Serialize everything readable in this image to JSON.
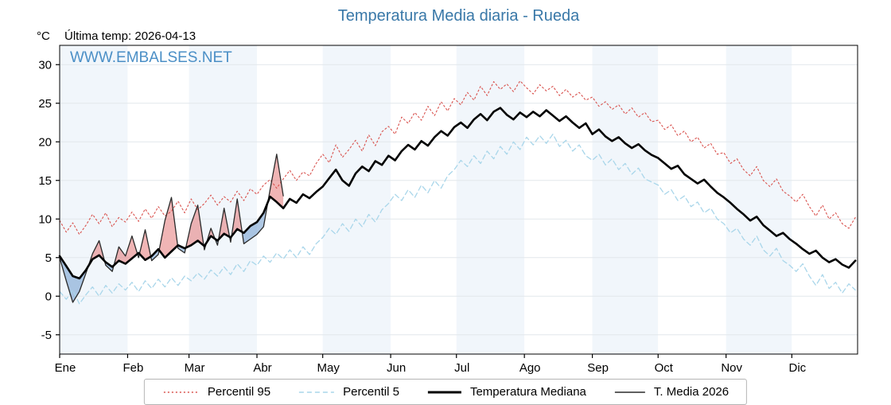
{
  "title": "Temperatura Media diaria - Rueda",
  "y_unit_label": "°C",
  "last_temp_label": "Última temp: 2026-04-13",
  "watermark": "WWW.EMBALSES.NET",
  "colors": {
    "title": "#3978a8",
    "watermark": "#4b8fc6",
    "band_even": "#f1f6fb",
    "band_odd": "#ffffff",
    "gridline": "#e2e7eb",
    "axis": "#000000",
    "fill_above": "rgba(228,120,120,0.55)",
    "fill_below": "rgba(110,155,205,0.55)"
  },
  "legend": {
    "position": "bottom",
    "items": [
      {
        "label": "Percentil 95"
      },
      {
        "label": "Percentil 5"
      },
      {
        "label": "Temperatura Mediana"
      },
      {
        "label": "T. Media 2026"
      }
    ]
  },
  "chart_data": {
    "type": "line",
    "title": "Temperatura Media diaria - Rueda",
    "xlabel": "",
    "ylabel": "°C",
    "x_months": [
      "Ene",
      "Feb",
      "Mar",
      "Abr",
      "May",
      "Jun",
      "Jul",
      "Ago",
      "Sep",
      "Oct",
      "Nov",
      "Dic"
    ],
    "month_start_days": [
      1,
      32,
      60,
      91,
      121,
      152,
      182,
      213,
      244,
      274,
      305,
      335
    ],
    "y_ticks": [
      -5,
      0,
      5,
      10,
      15,
      20,
      25,
      30
    ],
    "ylim": [
      -7.5,
      32.5
    ],
    "xlim": [
      1,
      365
    ],
    "x_step_days": 3,
    "grid": "horizontal",
    "legend_position": "bottom",
    "series": [
      {
        "name": "Percentil 95",
        "style": "dotted",
        "color": "#d9534f",
        "width": 1.1,
        "values": [
          9.8,
          8.3,
          9.5,
          8.0,
          9.2,
          10.6,
          9.4,
          10.8,
          9.0,
          10.2,
          9.6,
          10.9,
          9.7,
          11.3,
          10.1,
          11.6,
          10.4,
          11.0,
          12.3,
          10.8,
          12.6,
          11.2,
          12.0,
          13.1,
          11.8,
          12.9,
          12.2,
          13.6,
          12.4,
          13.9,
          13.2,
          14.4,
          15.1,
          14.0,
          15.2,
          16.3,
          15.0,
          16.1,
          15.6,
          17.2,
          18.4,
          17.3,
          19.6,
          18.0,
          19.0,
          20.2,
          18.8,
          20.9,
          19.5,
          21.3,
          22.0,
          21.0,
          23.2,
          22.4,
          23.8,
          22.8,
          24.6,
          23.4,
          25.2,
          24.0,
          25.6,
          24.8,
          26.4,
          25.4,
          27.2,
          26.0,
          27.8,
          26.8,
          27.5,
          26.5,
          27.9,
          27.0,
          26.2,
          27.4,
          26.6,
          27.2,
          26.0,
          26.8,
          25.8,
          26.4,
          25.4,
          25.8,
          24.6,
          25.2,
          24.2,
          24.8,
          23.6,
          24.4,
          23.2,
          23.8,
          22.6,
          22.8,
          21.6,
          22.2,
          20.8,
          21.4,
          20.0,
          20.6,
          19.2,
          19.8,
          18.4,
          18.6,
          17.2,
          17.8,
          16.4,
          15.6,
          16.8,
          15.0,
          14.2,
          15.2,
          13.6,
          13.0,
          12.2,
          13.2,
          11.6,
          10.4,
          11.8,
          10.0,
          10.8,
          9.4,
          8.8,
          10.2
        ]
      },
      {
        "name": "Percentil 5",
        "style": "dashed",
        "color": "#a9d6ea",
        "width": 1.3,
        "values": [
          0.6,
          -0.4,
          0.8,
          -1.0,
          0.2,
          1.2,
          0.0,
          1.4,
          0.4,
          1.6,
          0.8,
          1.8,
          0.6,
          2.0,
          1.0,
          2.2,
          1.2,
          2.4,
          1.4,
          2.6,
          2.0,
          3.0,
          2.2,
          3.4,
          2.6,
          3.8,
          2.8,
          4.2,
          3.2,
          4.6,
          4.0,
          5.2,
          4.4,
          5.6,
          4.8,
          6.0,
          5.0,
          6.4,
          5.4,
          6.8,
          7.6,
          8.8,
          8.0,
          9.4,
          8.4,
          10.0,
          9.0,
          10.6,
          9.6,
          11.2,
          12.0,
          13.2,
          12.4,
          13.8,
          12.8,
          14.4,
          13.4,
          15.0,
          14.0,
          15.6,
          16.4,
          17.6,
          16.8,
          18.2,
          17.2,
          18.8,
          17.8,
          19.4,
          18.4,
          20.0,
          19.0,
          20.6,
          19.6,
          20.8,
          19.8,
          21.0,
          19.4,
          20.2,
          18.8,
          19.6,
          18.2,
          17.6,
          18.4,
          17.0,
          17.8,
          16.4,
          17.2,
          15.8,
          16.6,
          15.2,
          14.8,
          14.4,
          13.2,
          13.8,
          12.4,
          13.0,
          11.6,
          12.2,
          10.8,
          11.4,
          10.0,
          9.4,
          8.2,
          8.8,
          7.4,
          6.6,
          7.8,
          6.0,
          5.2,
          6.2,
          4.6,
          4.0,
          3.2,
          4.2,
          2.6,
          1.4,
          2.8,
          1.0,
          1.8,
          0.4,
          1.6,
          0.8
        ]
      },
      {
        "name": "Temperatura Mediana",
        "style": "solid",
        "color": "#000000",
        "width": 2.6,
        "values": [
          5.2,
          3.9,
          2.6,
          2.3,
          3.4,
          4.8,
          5.3,
          4.4,
          3.8,
          4.6,
          4.2,
          4.9,
          5.6,
          4.7,
          5.2,
          6.1,
          5.0,
          5.8,
          6.6,
          6.2,
          6.6,
          7.2,
          6.5,
          7.8,
          7.2,
          8.1,
          7.6,
          8.7,
          8.2,
          9.1,
          9.6,
          10.8,
          12.9,
          12.2,
          11.4,
          12.6,
          12.1,
          13.2,
          12.7,
          13.5,
          14.2,
          15.3,
          16.4,
          15.0,
          14.3,
          15.9,
          16.8,
          16.2,
          17.5,
          17.0,
          18.2,
          17.6,
          18.8,
          19.6,
          19.0,
          20.1,
          19.5,
          20.6,
          21.4,
          20.8,
          21.9,
          22.5,
          21.8,
          22.9,
          23.6,
          22.8,
          23.9,
          24.4,
          23.5,
          22.9,
          23.8,
          23.2,
          23.9,
          23.3,
          24.1,
          23.4,
          22.7,
          23.3,
          22.5,
          21.8,
          22.4,
          21.0,
          21.6,
          20.7,
          20.1,
          20.6,
          19.8,
          19.2,
          19.7,
          18.9,
          18.3,
          17.9,
          17.2,
          16.5,
          16.9,
          15.8,
          15.2,
          14.6,
          15.1,
          14.2,
          13.4,
          12.8,
          12.1,
          11.3,
          10.6,
          9.8,
          10.3,
          9.2,
          8.5,
          7.8,
          8.2,
          7.4,
          6.8,
          6.1,
          5.5,
          5.9,
          5.0,
          4.4,
          4.8,
          4.1,
          3.7,
          4.6
        ]
      },
      {
        "name": "T. Media 2026",
        "style": "solid",
        "color": "#2a2a2a",
        "width": 1.3,
        "end_day": 103,
        "values": [
          5.0,
          2.0,
          -0.8,
          0.6,
          3.0,
          5.5,
          7.2,
          4.0,
          3.2,
          6.4,
          5.2,
          7.8,
          5.0,
          8.6,
          4.6,
          5.4,
          9.8,
          12.8,
          6.2,
          5.6,
          9.4,
          11.8,
          6.0,
          8.8,
          6.6,
          11.4,
          7.0,
          12.6,
          6.8,
          7.4,
          8.0,
          9.0,
          13.8,
          18.4,
          13.0
        ]
      }
    ]
  }
}
